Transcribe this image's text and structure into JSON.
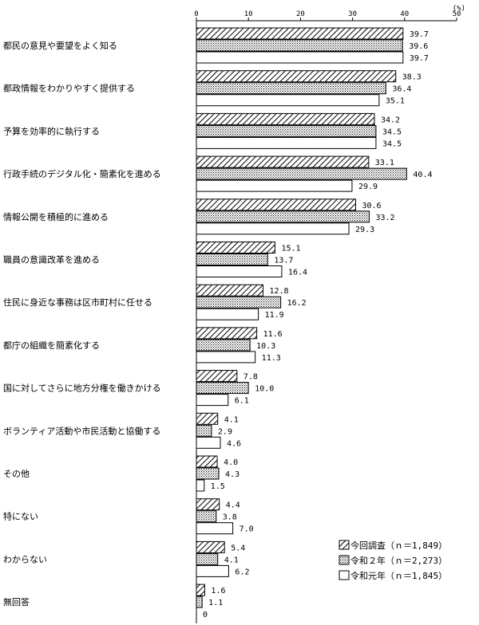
{
  "chart_data": {
    "type": "bar",
    "orientation": "horizontal",
    "unit": "(%)",
    "xlim": [
      0,
      50
    ],
    "ticks": [
      0,
      10,
      20,
      30,
      40,
      50
    ],
    "grid": false,
    "legend_position": "bottom-right",
    "categories": [
      "都民の意見や要望をよく知る",
      "都政情報をわかりやすく提供する",
      "予算を効率的に執行する",
      "行政手続のデジタル化・簡素化を進める",
      "情報公開を積極的に進める",
      "職員の意識改革を進める",
      "住民に身近な事務は区市町村に任せる",
      "都庁の組織を簡素化する",
      "国に対してさらに地方分権を働きかける",
      "ボランティア活動や市民活動と協働する",
      "その他",
      "特にない",
      "わからない",
      "無回答"
    ],
    "series": [
      {
        "name": "今回調査（ｎ＝1,849）",
        "pattern": "hatch",
        "values": [
          39.7,
          38.3,
          34.2,
          33.1,
          30.6,
          15.1,
          12.8,
          11.6,
          7.8,
          4.1,
          4.0,
          4.4,
          5.4,
          1.6
        ],
        "labels": [
          "39.7",
          "38.3",
          "34.2",
          "33.1",
          "30.6",
          "15.1",
          "12.8",
          "11.6",
          "7.8",
          "4.1",
          "4.0",
          "4.4",
          "5.4",
          "1.6"
        ]
      },
      {
        "name": "令和２年（ｎ＝2,273）",
        "pattern": "dots",
        "values": [
          39.6,
          36.4,
          34.5,
          40.4,
          33.2,
          13.7,
          16.2,
          10.3,
          10.0,
          2.9,
          4.3,
          3.8,
          4.1,
          1.1
        ],
        "labels": [
          "39.6",
          "36.4",
          "34.5",
          "40.4",
          "33.2",
          "13.7",
          "16.2",
          "10.3",
          "10.0",
          "2.9",
          "4.3",
          "3.8",
          "4.1",
          "1.1"
        ]
      },
      {
        "name": "令和元年（ｎ＝1,845）",
        "pattern": "plain",
        "values": [
          39.7,
          35.1,
          34.5,
          29.9,
          29.3,
          16.4,
          11.9,
          11.3,
          6.1,
          4.6,
          1.5,
          7.0,
          6.2,
          0
        ],
        "labels": [
          "39.7",
          "35.1",
          "34.5",
          "29.9",
          "29.3",
          "16.4",
          "11.9",
          "11.3",
          "6.1",
          "4.6",
          "1.5",
          "7.0",
          "6.2",
          "0"
        ]
      }
    ]
  }
}
